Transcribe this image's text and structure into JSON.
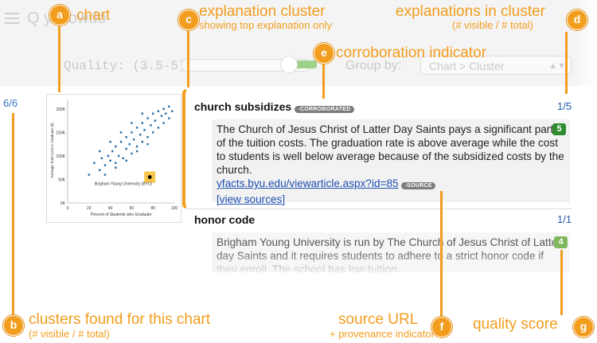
{
  "header": {
    "url": "Q       y.crowdo                        ",
    "quality_label": "Quality: (3.5-5)",
    "groupby_label": "Group by:",
    "groupby_value": "Chart > Cluster"
  },
  "annotations": {
    "a": {
      "letter": "a",
      "title": "chart"
    },
    "b": {
      "letter": "b",
      "title": "clusters found for this chart",
      "sub": "(# visible / # total)"
    },
    "c": {
      "letter": "c",
      "title": "explanation cluster",
      "sub": "showing top explanation only"
    },
    "d": {
      "letter": "d",
      "title": "explanations in cluster",
      "sub": "(# visible / # total)"
    },
    "e": {
      "letter": "e",
      "title": "corroboration indicator"
    },
    "f": {
      "letter": "f",
      "title": "source URL",
      "sub": "+ provenance indicator"
    },
    "g": {
      "letter": "g",
      "title": "quality score"
    }
  },
  "chart_panel": {
    "count": "6/6",
    "ylabel": "Average Total Cost to Graduate ($)",
    "xlabel": "Percent of Students who Graduate",
    "y_ticks": [
      "200K",
      "150K",
      "100K",
      "50K",
      "0K"
    ],
    "x_ticks": [
      "0",
      "20",
      "40",
      "60",
      "80",
      "100"
    ],
    "highlight_label": "Brigham Young University (BYU)"
  },
  "chart_data": {
    "type": "scatter",
    "title": "",
    "xlabel": "Percent of Students who Graduate",
    "ylabel": "Average Total Cost to Graduate ($)",
    "xlim": [
      0,
      100
    ],
    "ylim": [
      0,
      220000
    ],
    "points": [
      [
        20,
        60000
      ],
      [
        25,
        85000
      ],
      [
        30,
        70000
      ],
      [
        32,
        95000
      ],
      [
        35,
        80000
      ],
      [
        38,
        100000
      ],
      [
        40,
        90000
      ],
      [
        42,
        110000
      ],
      [
        45,
        75000
      ],
      [
        45,
        120000
      ],
      [
        48,
        100000
      ],
      [
        50,
        130000
      ],
      [
        52,
        95000
      ],
      [
        55,
        115000
      ],
      [
        55,
        140000
      ],
      [
        58,
        125000
      ],
      [
        60,
        105000
      ],
      [
        60,
        150000
      ],
      [
        62,
        135000
      ],
      [
        65,
        160000
      ],
      [
        65,
        120000
      ],
      [
        68,
        145000
      ],
      [
        70,
        170000
      ],
      [
        70,
        130000
      ],
      [
        72,
        155000
      ],
      [
        75,
        180000
      ],
      [
        75,
        140000
      ],
      [
        78,
        165000
      ],
      [
        80,
        190000
      ],
      [
        80,
        150000
      ],
      [
        82,
        175000
      ],
      [
        85,
        195000
      ],
      [
        85,
        160000
      ],
      [
        88,
        185000
      ],
      [
        90,
        200000
      ],
      [
        90,
        170000
      ],
      [
        92,
        190000
      ],
      [
        95,
        205000
      ],
      [
        95,
        180000
      ],
      [
        98,
        195000
      ],
      [
        30,
        110000
      ],
      [
        40,
        130000
      ],
      [
        50,
        150000
      ],
      [
        60,
        170000
      ],
      [
        70,
        190000
      ],
      [
        35,
        60000
      ],
      [
        45,
        85000
      ],
      [
        55,
        90000
      ],
      [
        65,
        110000
      ],
      [
        75,
        125000
      ]
    ],
    "highlight": {
      "name": "Brigham Young University (BYU)",
      "x": 77,
      "y": 55000
    }
  },
  "clusters": [
    {
      "title": "church subsidizes",
      "badge": "CORROBORATED",
      "count": "1/5",
      "text": "The Church of Jesus Christ of Latter Day Saints pays a significant part of the tuition costs. The graduation rate is above average while the cost to students is well below average because of the subsidized costs by the church.",
      "url": "yfacts.byu.edu/viewarticle.aspx?id=85",
      "source_badge": "SOURCE",
      "view_sources": "[view sources]",
      "score": "5",
      "score_color": "#2e8b2e"
    },
    {
      "title": "honor code",
      "count": "1/1",
      "text": "Brigham Young University is run by The Church of Jesus Christ of Latter-day Saints and it requires students to adhere to a strict honor code if they enroll. The school has low tuition",
      "score": "4",
      "score_color": "#7fb85a"
    }
  ]
}
